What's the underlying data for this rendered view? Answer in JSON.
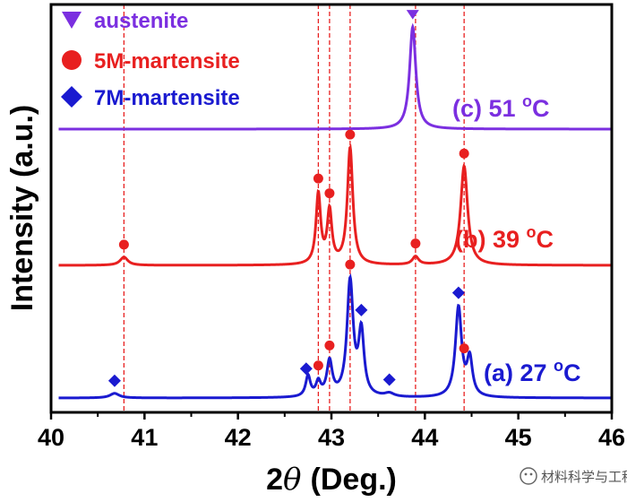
{
  "chart_data": {
    "type": "line",
    "xlabel_prefix": "2",
    "xlabel_theta": "θ",
    "xlabel_suffix": "(Deg.)",
    "ylabel": "Intensity (a.u.)",
    "xlim": [
      40,
      46
    ],
    "x_ticks": [
      "40",
      "41",
      "42",
      "43",
      "44",
      "45",
      "46"
    ],
    "legend": [
      {
        "marker": "triangle-down",
        "label": "austenite",
        "color": "#7b2fe0"
      },
      {
        "marker": "circle",
        "label": "5M-martensite",
        "color": "#e82020"
      },
      {
        "marker": "diamond",
        "label": "7M-martensite",
        "color": "#1a1ad0"
      }
    ],
    "reference_lines_2theta": [
      40.78,
      42.86,
      42.98,
      43.2,
      43.9,
      44.42
    ],
    "series": [
      {
        "name": "(c) 51 oC",
        "label_main": "(c) 51 ",
        "label_sup": "o",
        "label_unit": "C",
        "color": "#7b2fe0",
        "baseline": 0.0,
        "peaks": [
          {
            "x": 43.87,
            "height": 1.0,
            "width": 0.04
          }
        ],
        "markers": [
          {
            "x": 43.87,
            "height": 1.0,
            "shape": "triangle-down"
          }
        ]
      },
      {
        "name": "(b) 39 oC",
        "label_main": "(b) 39 ",
        "label_sup": "o",
        "label_unit": "C",
        "color": "#e82020",
        "baseline": 0.0,
        "peaks": [
          {
            "x": 40.78,
            "height": 0.07,
            "width": 0.05
          },
          {
            "x": 42.86,
            "height": 0.6,
            "width": 0.03
          },
          {
            "x": 42.98,
            "height": 0.45,
            "width": 0.03
          },
          {
            "x": 43.2,
            "height": 1.0,
            "width": 0.035
          },
          {
            "x": 43.9,
            "height": 0.07,
            "width": 0.04
          },
          {
            "x": 44.42,
            "height": 0.85,
            "width": 0.045
          }
        ],
        "markers": [
          {
            "x": 40.78,
            "height": 0.07,
            "shape": "circle"
          },
          {
            "x": 42.86,
            "height": 0.6,
            "shape": "circle"
          },
          {
            "x": 42.98,
            "height": 0.45,
            "shape": "circle"
          },
          {
            "x": 43.2,
            "height": 1.0,
            "shape": "circle"
          },
          {
            "x": 43.9,
            "height": 0.07,
            "shape": "circle"
          },
          {
            "x": 44.42,
            "height": 0.85,
            "shape": "circle"
          }
        ]
      },
      {
        "name": "(a) 27 oC",
        "label_main": "(a) 27 ",
        "label_sup": "o",
        "label_unit": "C",
        "color": "#1a1ad0",
        "baseline": 0.0,
        "peaks": [
          {
            "x": 40.68,
            "height": 0.04,
            "width": 0.06
          },
          {
            "x": 42.75,
            "height": 0.18,
            "width": 0.03
          },
          {
            "x": 42.86,
            "height": 0.12,
            "width": 0.03
          },
          {
            "x": 42.98,
            "height": 0.3,
            "width": 0.035
          },
          {
            "x": 43.2,
            "height": 1.0,
            "width": 0.04
          },
          {
            "x": 43.32,
            "height": 0.55,
            "width": 0.035
          },
          {
            "x": 43.62,
            "height": 0.03,
            "width": 0.06
          },
          {
            "x": 44.36,
            "height": 0.78,
            "width": 0.04
          },
          {
            "x": 44.48,
            "height": 0.32,
            "width": 0.035
          }
        ],
        "markers": [
          {
            "x": 40.68,
            "height": 0.04,
            "shape": "diamond"
          },
          {
            "x": 42.73,
            "height": 0.3,
            "shape": "diamond"
          },
          {
            "x": 42.86,
            "height": 0.12,
            "shape": "circle"
          },
          {
            "x": 42.98,
            "height": 0.3,
            "shape": "circle"
          },
          {
            "x": 43.2,
            "height": 1.0,
            "shape": "circle"
          },
          {
            "x": 43.32,
            "height": 0.6,
            "shape": "diamond"
          },
          {
            "x": 43.62,
            "height": 0.03,
            "shape": "diamond"
          },
          {
            "x": 44.36,
            "height": 0.8,
            "shape": "diamond"
          },
          {
            "x": 44.42,
            "height": 0.78,
            "shape": "circle"
          }
        ]
      }
    ]
  },
  "watermark": {
    "text": "材料科学与工程"
  }
}
